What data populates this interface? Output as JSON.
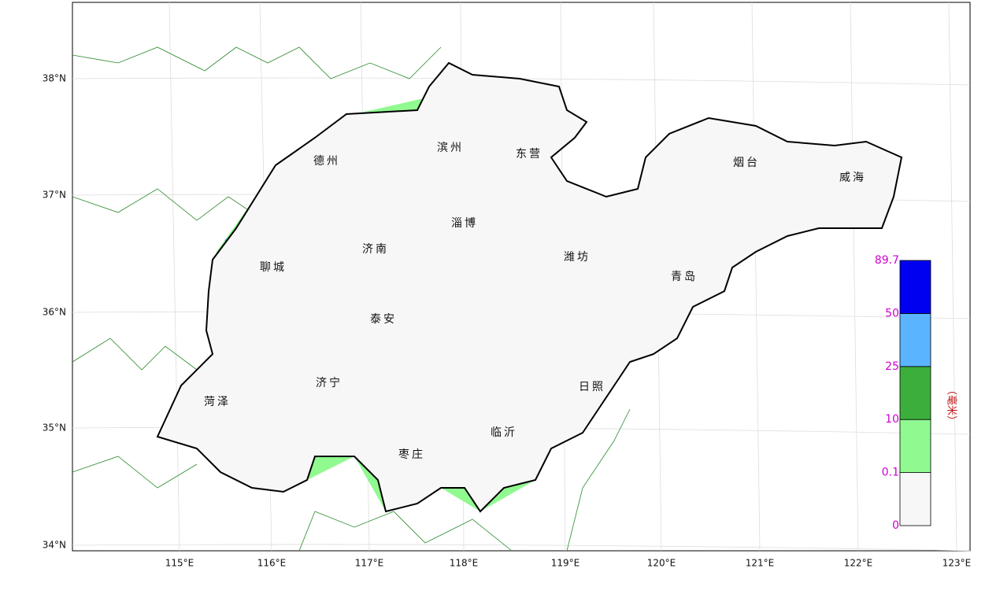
{
  "map": {
    "cities": [
      "德州",
      "滨州",
      "东营",
      "烟台",
      "威海",
      "淄博",
      "济南",
      "潍坊",
      "聊城",
      "青岛",
      "泰安",
      "济宁",
      "日照",
      "菏泽",
      "临沂",
      "枣庄"
    ],
    "x_labels": [
      "115°E",
      "116°E",
      "117°E",
      "118°E",
      "119°E",
      "120°E",
      "121°E",
      "122°E",
      "123°E"
    ],
    "y_labels": [
      "38°N",
      "37°N",
      "36°N",
      "35°N",
      "34°N"
    ]
  },
  "legend": {
    "title": "（毫米）",
    "levels": [
      0,
      0.1,
      10,
      25,
      50,
      89.7
    ],
    "colors": [
      "#f7f7f7",
      "#90f990",
      "#3cae3c",
      "#5ab4ff",
      "#0000f0"
    ]
  }
}
